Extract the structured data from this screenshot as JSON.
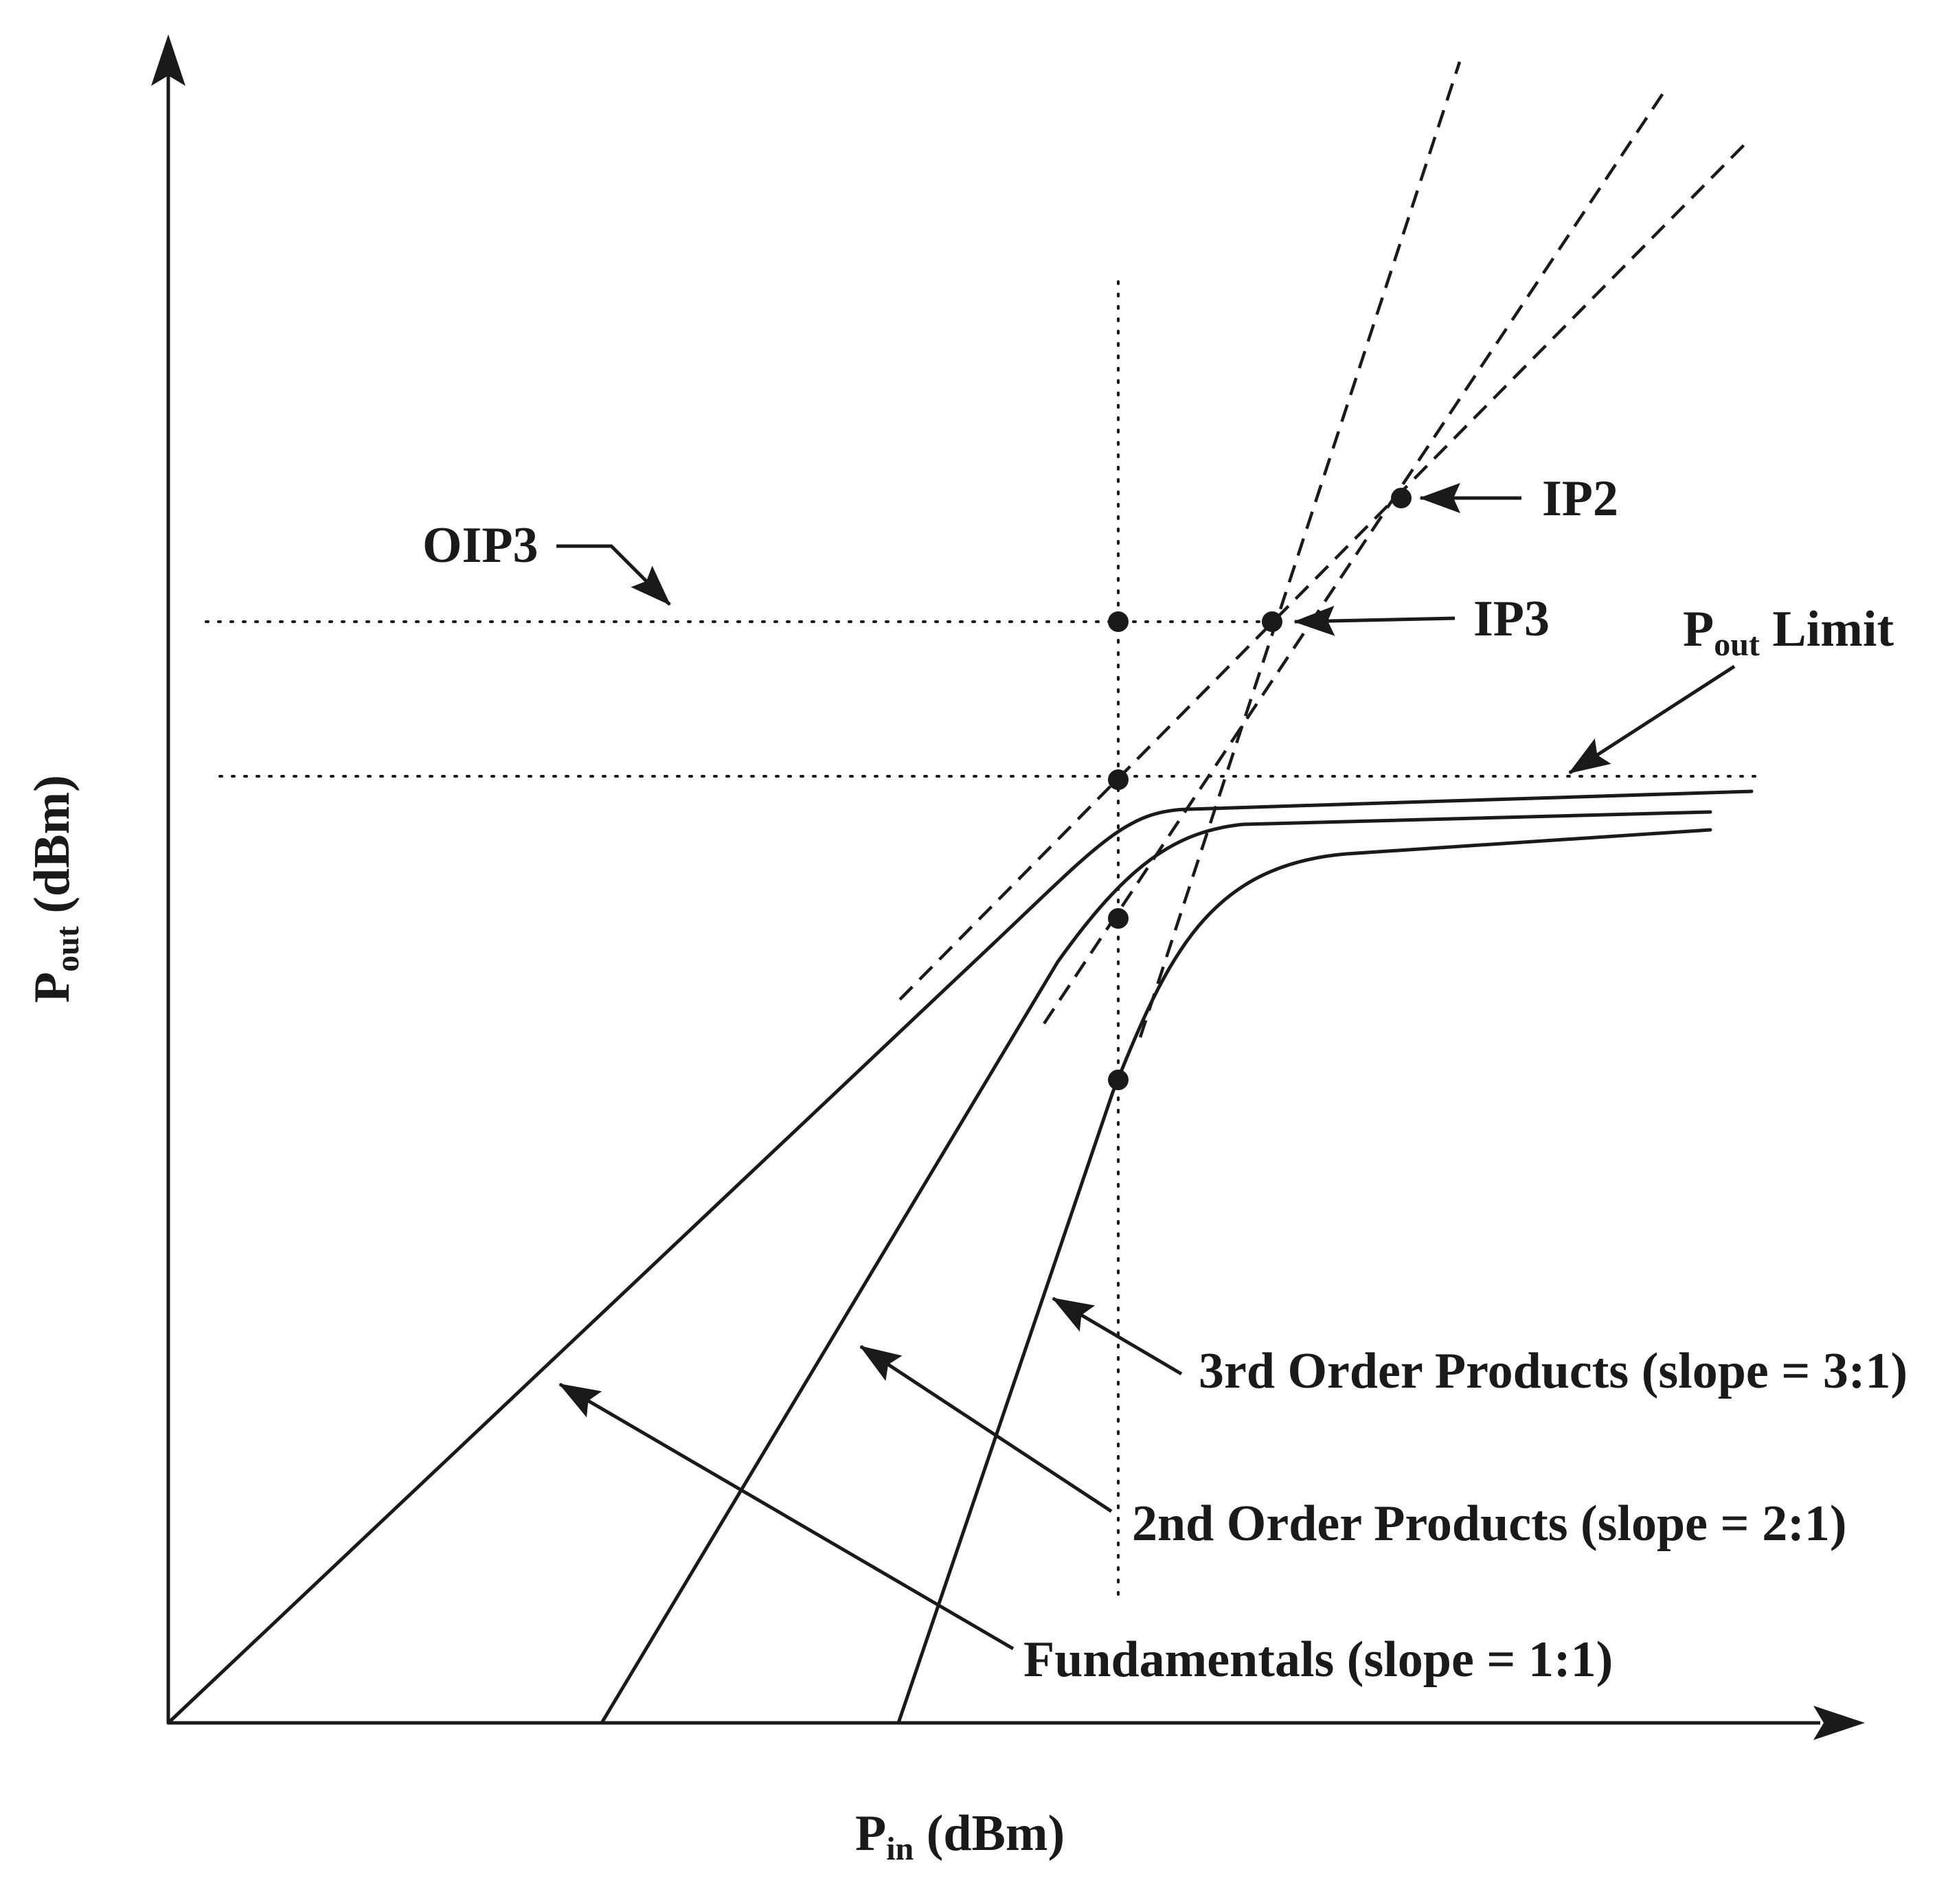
{
  "labels": {
    "ip2": "IP2",
    "ip3": "IP3",
    "oip3": "OIP3",
    "pout_limit_main": "P",
    "pout_limit_sub": "out",
    "pout_limit_rest": " Limit",
    "third_order": "3rd Order Products (slope = 3:1)",
    "second_order": "2nd Order Products (slope = 2:1)",
    "fundamentals": "Fundamentals (slope = 1:1)",
    "x_axis_main": "P",
    "x_axis_sub": "in",
    "x_axis_rest": " (dBm)",
    "y_axis_main": "P",
    "y_axis_sub": "out",
    "y_axis_rest": " (dBm)"
  },
  "colors": {
    "ink": "#1a1a1a",
    "background": "#ffffff"
  }
}
